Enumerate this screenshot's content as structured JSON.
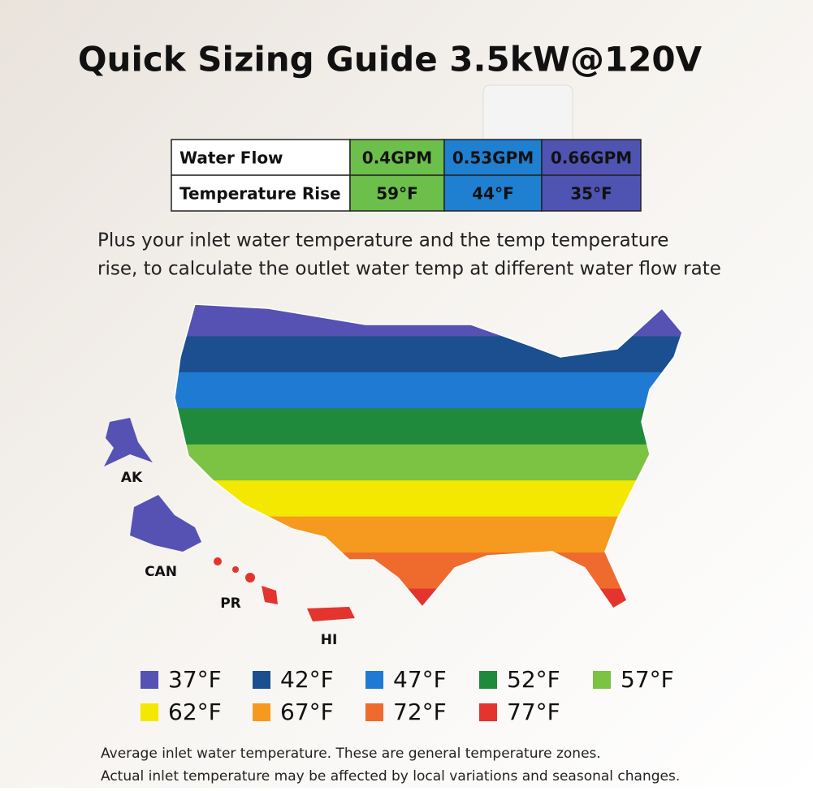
{
  "title": "Quick Sizing Guide 3.5kW@120V",
  "table": {
    "rows": [
      [
        "Water Flow",
        "0.4GPM",
        "0.53GPM",
        "0.66GPM"
      ],
      [
        "Temperature Rise",
        "59°F",
        "44°F",
        "35°F"
      ]
    ],
    "column_colors": [
      "#ffffff",
      "#6cbf4a",
      "#1f7fd1",
      "#4f54b3"
    ]
  },
  "description": [
    "Plus your inlet water temperature and the temp temperature",
    "rise, to calculate the outlet water temp at different water flow rate"
  ],
  "map_labels": [
    "AK",
    "CAN",
    "PR",
    "HI"
  ],
  "legend": [
    {
      "label": "37°F",
      "color": "#5552b3"
    },
    {
      "label": "42°F",
      "color": "#1b4f8f"
    },
    {
      "label": "47°F",
      "color": "#1f7ad4"
    },
    {
      "label": "52°F",
      "color": "#1f8a3c"
    },
    {
      "label": "57°F",
      "color": "#7cc243"
    },
    {
      "label": "62°F",
      "color": "#f5e800"
    },
    {
      "label": "67°F",
      "color": "#f59a1e"
    },
    {
      "label": "72°F",
      "color": "#ee6b2d"
    },
    {
      "label": "77°F",
      "color": "#e3342e"
    }
  ],
  "footnote": [
    "Average inlet water temperature. These are general  temperature zones.",
    "Actual inlet temperature may be affected by local variations and seasonal changes."
  ]
}
